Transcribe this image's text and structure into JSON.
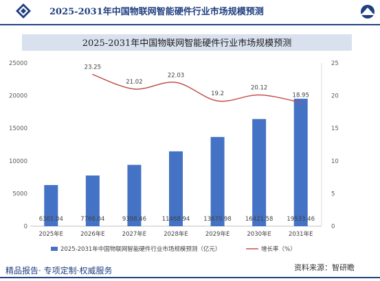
{
  "header": {
    "title": "2025-2031年中国物联网智能硬件行业市场规模预测"
  },
  "footer": {
    "tagline": "精品报告· 专项定制·权威服务",
    "source": "资料来源：智研瞻"
  },
  "colors": {
    "brand": "#1f3f7f",
    "bar": "#4472c4",
    "line": "#c0504d",
    "title_band": "#d9e1ef"
  },
  "chart_data": {
    "type": "bar",
    "title": "2025-2031年中国物联网智能硬件行业市场规模预测",
    "categories": [
      "2025年E",
      "2026年E",
      "2027年E",
      "2028年E",
      "2029年E",
      "2030年E",
      "2031年E"
    ],
    "series": [
      {
        "name": "2025-2031年中国物联网智能硬件行业市场规模预测（亿元）",
        "type": "bar",
        "axis": "left",
        "values": [
          6301.04,
          7766.04,
          9398.46,
          11468.94,
          13670.98,
          16421.58,
          19533.46
        ],
        "labels": [
          "6301.04",
          "7766.04",
          "9398.46",
          "11468.94",
          "13670.98",
          "16421.58",
          "19533.46"
        ]
      },
      {
        "name": "增长率（%）",
        "type": "line",
        "axis": "right",
        "values": [
          null,
          23.25,
          21.02,
          22.03,
          19.2,
          20.12,
          18.95
        ],
        "labels": [
          "",
          "23.25",
          "21.02",
          "22.03",
          "19.2",
          "20.12",
          "18.95"
        ]
      }
    ],
    "y_left": {
      "min": 0,
      "max": 25000,
      "ticks": [
        "0",
        "5000",
        "10000",
        "15000",
        "20000",
        "25000"
      ]
    },
    "y_right": {
      "min": 0,
      "max": 25,
      "ticks": [
        "0",
        "5",
        "10",
        "15",
        "20",
        "25"
      ]
    },
    "grid": false,
    "legend_position": "bottom"
  }
}
